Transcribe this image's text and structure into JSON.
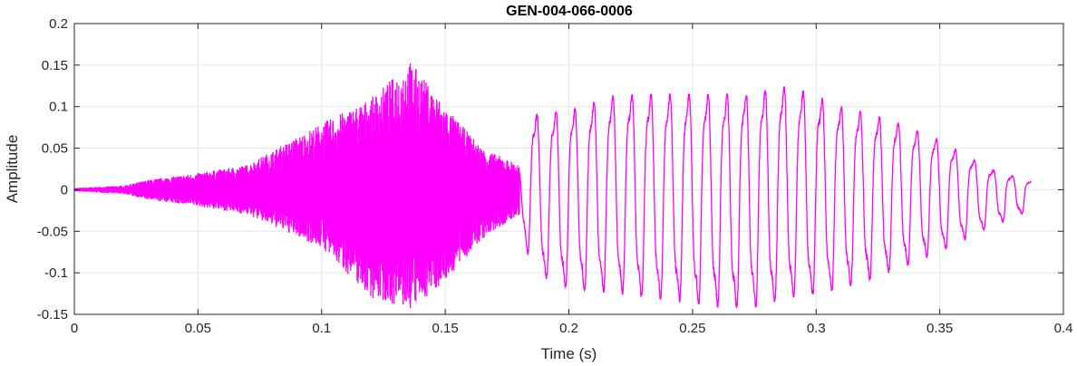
{
  "chart_data": {
    "type": "line",
    "title": "GEN-004-066-0006",
    "xlabel": "Time (s)",
    "ylabel": "Amplitude",
    "xlim": [
      0,
      0.4
    ],
    "ylim": [
      -0.15,
      0.2
    ],
    "grid": true,
    "series_color": "#ff00ff",
    "x_ticks": [
      0,
      0.05,
      0.1,
      0.15,
      0.2,
      0.25,
      0.3,
      0.35,
      0.4
    ],
    "x_tick_labels": [
      "0",
      "0.05",
      "0.1",
      "0.15",
      "0.2",
      "0.25",
      "0.3",
      "0.35",
      "0.4"
    ],
    "y_ticks": [
      -0.15,
      -0.1,
      -0.05,
      0,
      0.05,
      0.1,
      0.15,
      0.2
    ],
    "y_tick_labels": [
      "-0.15",
      "-0.1",
      "-0.05",
      "0",
      "0.05",
      "0.1",
      "0.15",
      "0.2"
    ],
    "series": [
      {
        "signal_end": 0.387,
        "envelope": [
          {
            "t": 0.0,
            "upper": 0.002,
            "lower": -0.002
          },
          {
            "t": 0.02,
            "upper": 0.005,
            "lower": -0.005
          },
          {
            "t": 0.03,
            "upper": 0.012,
            "lower": -0.012
          },
          {
            "t": 0.05,
            "upper": 0.02,
            "lower": -0.02
          },
          {
            "t": 0.07,
            "upper": 0.03,
            "lower": -0.03
          },
          {
            "t": 0.085,
            "upper": 0.055,
            "lower": -0.05
          },
          {
            "t": 0.1,
            "upper": 0.08,
            "lower": -0.07
          },
          {
            "t": 0.12,
            "upper": 0.11,
            "lower": -0.13
          },
          {
            "t": 0.136,
            "upper": 0.155,
            "lower": -0.145
          },
          {
            "t": 0.15,
            "upper": 0.1,
            "lower": -0.11
          },
          {
            "t": 0.165,
            "upper": 0.05,
            "lower": -0.06
          },
          {
            "t": 0.18,
            "upper": 0.03,
            "lower": -0.03
          },
          {
            "t": 0.185,
            "upper": 0.09,
            "lower": -0.1
          },
          {
            "t": 0.2,
            "upper": 0.095,
            "lower": -0.12
          },
          {
            "t": 0.22,
            "upper": 0.115,
            "lower": -0.125
          },
          {
            "t": 0.27,
            "upper": 0.115,
            "lower": -0.145
          },
          {
            "t": 0.29,
            "upper": 0.125,
            "lower": -0.13
          },
          {
            "t": 0.31,
            "upper": 0.1,
            "lower": -0.12
          },
          {
            "t": 0.33,
            "upper": 0.085,
            "lower": -0.1
          },
          {
            "t": 0.35,
            "upper": 0.06,
            "lower": -0.075
          },
          {
            "t": 0.37,
            "upper": 0.025,
            "lower": -0.045
          },
          {
            "t": 0.387,
            "upper": 0.01,
            "lower": -0.025
          }
        ]
      }
    ]
  }
}
